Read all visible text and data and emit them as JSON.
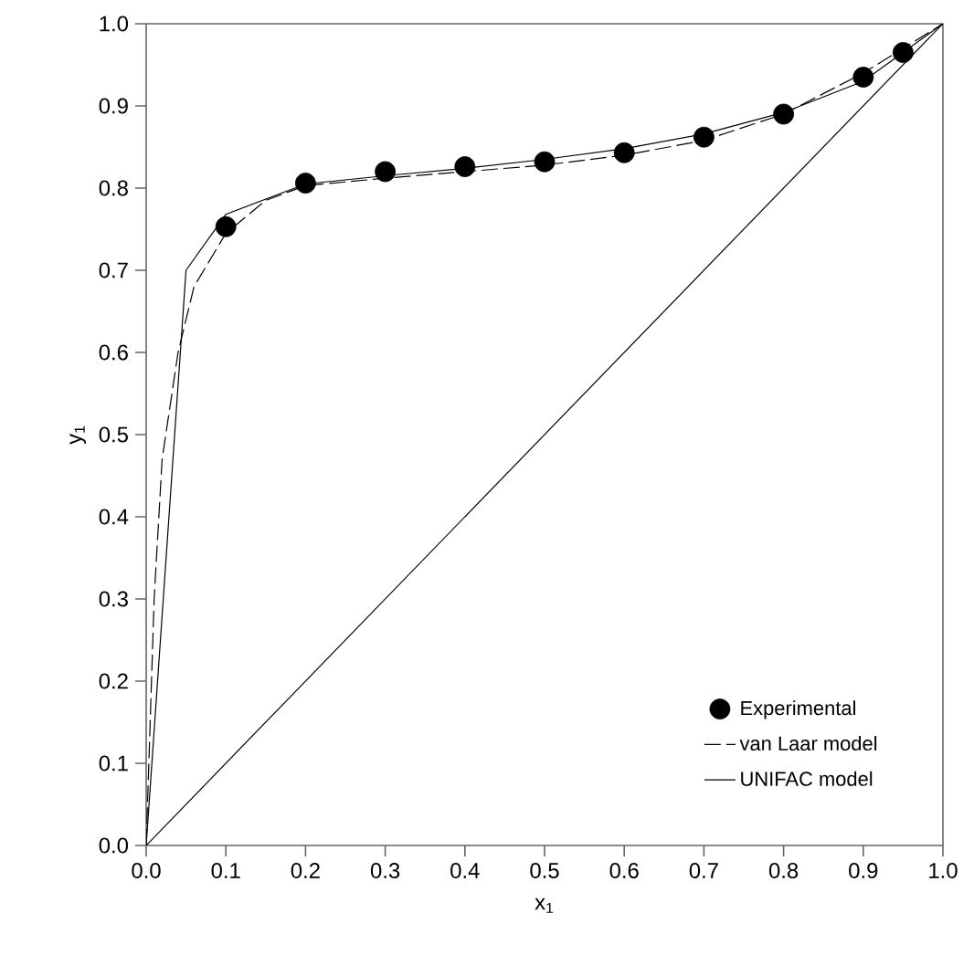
{
  "chart_data": {
    "type": "line",
    "xlabel": "x$_{1}$",
    "ylabel": "y$_{1}$",
    "xlim": [
      0,
      1
    ],
    "ylim": [
      0,
      1
    ],
    "xticks": [
      {
        "value": 0,
        "label": "0.0"
      },
      0.1,
      0.2,
      0.3,
      0.4,
      0.5,
      0.6,
      0.7,
      0.8,
      0.9,
      {
        "value": 1,
        "label": "1.0"
      }
    ],
    "yticks": [
      {
        "value": 0,
        "label": "0.0"
      },
      0.1,
      0.2,
      0.3,
      0.4,
      0.5,
      0.6,
      0.7,
      0.8,
      0.9,
      {
        "value": 1,
        "label": "1.0"
      }
    ],
    "grid": false,
    "legend": "bottom right",
    "series": [
      {
        "name": "Experimental",
        "type": "scatter",
        "marker": "circle",
        "color": "#000000",
        "x": [
          0.1,
          0.2,
          0.3,
          0.4,
          0.5,
          0.6,
          0.7,
          0.8,
          0.9,
          0.95
        ],
        "values": [
          0.753,
          0.806,
          0.82,
          0.826,
          0.832,
          0.843,
          0.862,
          0.89,
          0.935,
          0.965
        ]
      },
      {
        "name": "van Laar model",
        "line_style": "dashed",
        "color": "#000000",
        "x": [
          0,
          0.01,
          0.02,
          0.04,
          0.06,
          0.1,
          0.15,
          0.2,
          0.3,
          0.4,
          0.5,
          0.6,
          0.7,
          0.8,
          0.9,
          1.0
        ],
        "values": [
          0,
          0.3,
          0.47,
          0.6,
          0.68,
          0.745,
          0.785,
          0.803,
          0.812,
          0.82,
          0.828,
          0.84,
          0.858,
          0.89,
          0.94,
          1.0
        ]
      },
      {
        "name": "UNIFAC model",
        "line_style": "solid",
        "color": "#000000",
        "x": [
          0,
          0.05,
          0.1,
          0.2,
          0.3,
          0.4,
          0.5,
          0.6,
          0.7,
          0.8,
          0.9,
          1.0
        ],
        "values": [
          0,
          0.7,
          0.768,
          0.805,
          0.815,
          0.824,
          0.835,
          0.848,
          0.866,
          0.892,
          0.93,
          1.0
        ]
      },
      {
        "line_style": "solid",
        "color": "#000000",
        "x": [
          0,
          1
        ],
        "values": [
          0,
          1
        ]
      }
    ]
  }
}
